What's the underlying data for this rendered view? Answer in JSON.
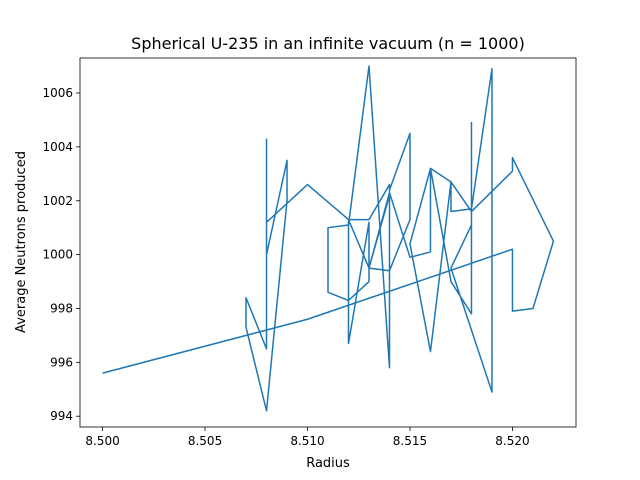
{
  "chart_data": {
    "type": "line",
    "title": "Spherical U-235 in an infinite vacuum (n = 1000)",
    "xlabel": "Radius",
    "ylabel": "Average Neutrons produced",
    "xlim": [
      8.4989,
      8.5231
    ],
    "ylim": [
      993.6,
      1007.3
    ],
    "xticks": [
      8.5,
      8.505,
      8.51,
      8.515,
      8.52
    ],
    "xtick_labels": [
      "8.500",
      "8.505",
      "8.510",
      "8.515",
      "8.520"
    ],
    "yticks": [
      994,
      996,
      998,
      1000,
      1002,
      1004,
      1006
    ],
    "ytick_labels": [
      "994",
      "996",
      "998",
      "1000",
      "1002",
      "1004",
      "1006"
    ],
    "grid": false,
    "color": "#1f77b4",
    "series": [
      {
        "x": [
          8.5,
          8.51,
          8.52,
          8.52,
          8.521,
          8.522,
          8.52,
          8.52,
          8.518,
          8.517,
          8.516,
          8.515,
          8.516,
          8.517,
          8.518,
          8.518,
          8.518,
          8.518,
          8.517,
          8.519,
          8.519,
          8.518,
          8.517,
          8.517,
          8.516,
          8.516,
          8.515,
          8.514,
          8.513,
          8.513,
          8.512,
          8.512,
          8.513,
          8.514,
          8.514,
          8.513,
          8.513,
          8.512,
          8.511,
          8.511,
          8.512,
          8.513,
          8.514,
          8.514,
          8.514,
          8.515,
          8.515,
          8.514,
          8.513,
          8.512,
          8.51,
          8.508,
          8.508,
          8.509,
          8.509,
          8.509,
          8.509,
          8.508,
          8.507,
          8.507,
          8.508,
          8.508
        ],
        "y": [
          995.6,
          997.6,
          1000.2,
          997.9,
          998.0,
          1000.5,
          1003.6,
          1003.1,
          1001.6,
          1002.7,
          996.4,
          1000.4,
          1003.2,
          999.0,
          997.8,
          1004.9,
          1000.4,
          1001.1,
          999.5,
          994.9,
          1006.9,
          1001.7,
          1001.6,
          1002.7,
          1003.2,
          1000.1,
          999.9,
          1002.3,
          999.5,
          1001.2,
          996.7,
          1001.3,
          1001.3,
          1002.6,
          1002.2,
          999.5,
          999.0,
          998.3,
          998.6,
          1001.0,
          1001.1,
          1007.0,
          995.8,
          997.5,
          1002.4,
          1004.5,
          1001.3,
          999.4,
          999.5,
          1001.3,
          1002.6,
          1001.2,
          1000.0,
          1003.5,
          1003.2,
          1003.3,
          1002.0,
          994.2,
          997.3,
          998.4,
          996.5,
          1004.3
        ]
      }
    ]
  }
}
